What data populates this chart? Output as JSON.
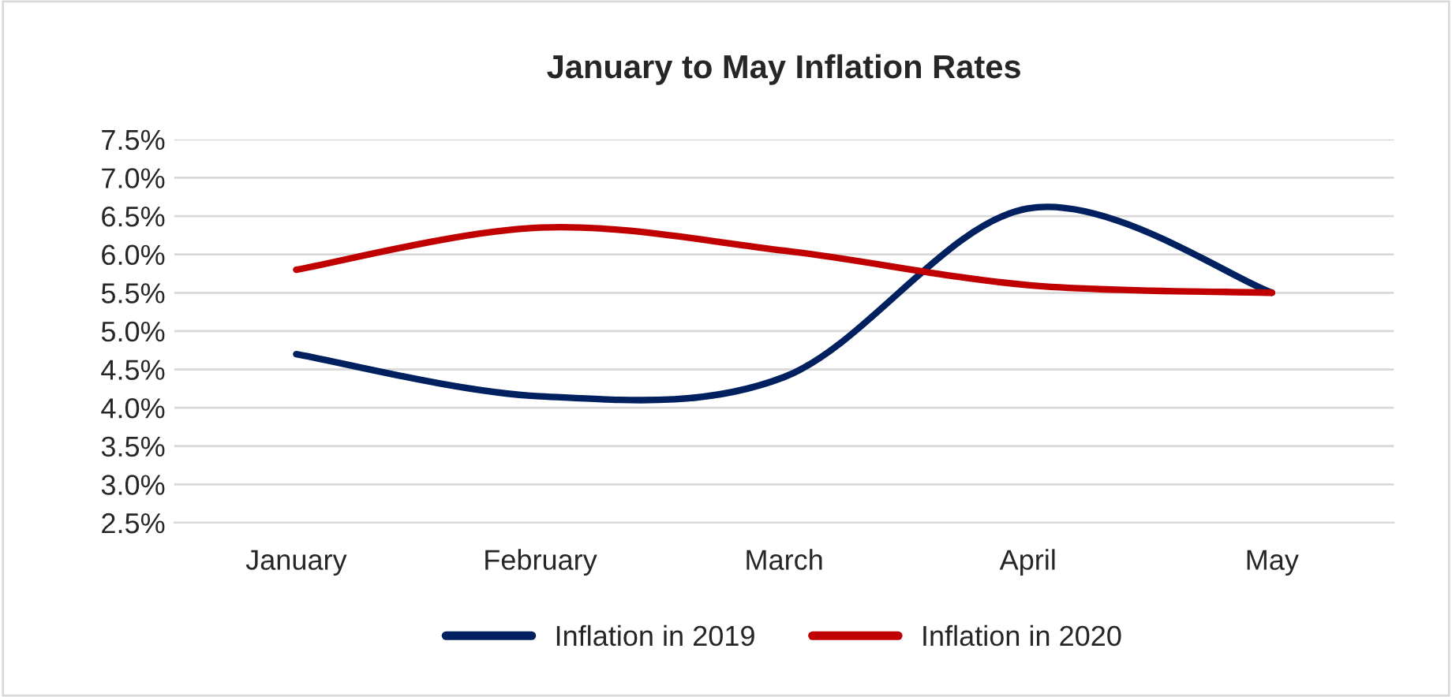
{
  "chart_data": {
    "type": "line",
    "title": "January to May Inflation Rates",
    "categories": [
      "January",
      "February",
      "March",
      "April",
      "May"
    ],
    "series": [
      {
        "name": "Inflation in 2019",
        "color": "#002060",
        "values": [
          4.7,
          4.15,
          4.4,
          6.6,
          5.5
        ]
      },
      {
        "name": "Inflation in 2020",
        "color": "#c00000",
        "values": [
          5.8,
          6.35,
          6.05,
          5.6,
          5.5
        ]
      }
    ],
    "ylim": [
      2.5,
      7.5
    ],
    "yticks": [
      {
        "value": 2.5,
        "label": "2.5%"
      },
      {
        "value": 3.0,
        "label": "3.0%"
      },
      {
        "value": 3.5,
        "label": "3.5%"
      },
      {
        "value": 4.0,
        "label": "4.0%"
      },
      {
        "value": 4.5,
        "label": "4.5%"
      },
      {
        "value": 5.0,
        "label": "5.0%"
      },
      {
        "value": 5.5,
        "label": "5.5%"
      },
      {
        "value": 6.0,
        "label": "6.0%"
      },
      {
        "value": 6.5,
        "label": "6.5%"
      },
      {
        "value": 7.0,
        "label": "7.0%"
      },
      {
        "value": 7.5,
        "label": "7.5%"
      }
    ],
    "grid": "y",
    "legend": "bottom",
    "line_style": "solid"
  }
}
